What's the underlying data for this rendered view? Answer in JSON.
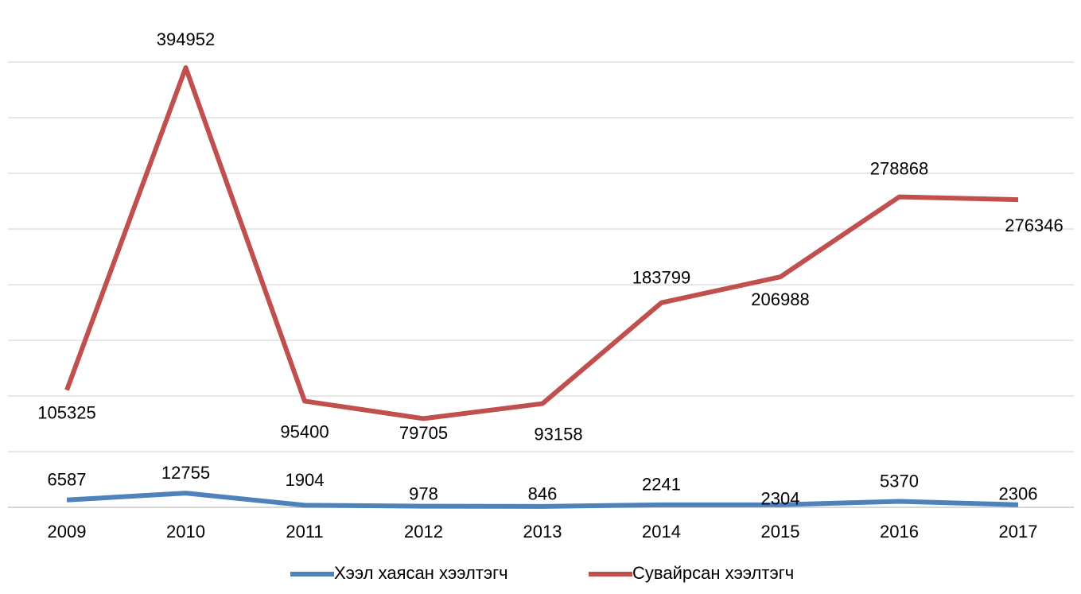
{
  "chart_data": {
    "type": "line",
    "categories": [
      "2009",
      "2010",
      "2011",
      "2012",
      "2013",
      "2014",
      "2015",
      "2016",
      "2017"
    ],
    "series": [
      {
        "name": "Хээл хаясан хээлтэгч",
        "color": "#4f81bd",
        "values": [
          6587,
          12755,
          1904,
          978,
          846,
          2241,
          2304,
          5370,
          2306
        ]
      },
      {
        "name": "Сувайрсан хээлтэгч",
        "color": "#c0504d",
        "values": [
          105325,
          394952,
          95400,
          79705,
          93158,
          183799,
          206988,
          278868,
          276346
        ]
      }
    ],
    "ylim": [
      0,
      400000
    ],
    "yticks": [
      0,
      50000,
      100000,
      150000,
      200000,
      250000,
      300000,
      350000,
      400000
    ],
    "grid": true,
    "legend": "bottom"
  }
}
